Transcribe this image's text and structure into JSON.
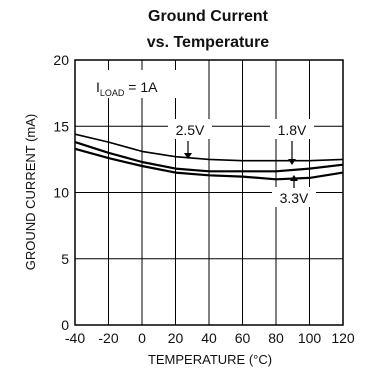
{
  "chart_data": {
    "type": "line",
    "title_line1": "Ground Current",
    "title_line2": "vs. Temperature",
    "xlabel": "TEMPERATURE (°C)",
    "ylabel": "GROUND CURRENT (mA)",
    "xlim": [
      -40,
      120
    ],
    "ylim": [
      0,
      20
    ],
    "x_ticks": [
      -40,
      -20,
      0,
      20,
      40,
      60,
      80,
      100,
      120
    ],
    "x_tick_labels": [
      "-40",
      "-20",
      "0",
      "20",
      "40",
      "60",
      "80",
      "100",
      "120"
    ],
    "y_ticks": [
      0,
      5,
      10,
      15,
      20
    ],
    "y_tick_labels": [
      "0",
      "5",
      "10",
      "15",
      "20"
    ],
    "grid": true,
    "annotation_load": {
      "main": "I",
      "sub": "LOAD",
      "rest": " = 1A"
    },
    "series": [
      {
        "name": "2.5V",
        "x": [
          -40,
          -20,
          0,
          20,
          40,
          60,
          80,
          100,
          120
        ],
        "y": [
          14.4,
          13.8,
          13.1,
          12.7,
          12.5,
          12.4,
          12.4,
          12.4,
          12.5
        ]
      },
      {
        "name": "1.8V",
        "x": [
          -40,
          -20,
          0,
          20,
          40,
          60,
          80,
          100,
          120
        ],
        "y": [
          13.8,
          13.0,
          12.3,
          11.8,
          11.6,
          11.6,
          11.6,
          11.8,
          12.1
        ]
      },
      {
        "name": "3.3V",
        "x": [
          -40,
          -20,
          0,
          20,
          40,
          60,
          80,
          100,
          120
        ],
        "y": [
          13.3,
          12.6,
          12.0,
          11.5,
          11.3,
          11.2,
          11.0,
          11.1,
          11.5
        ]
      }
    ]
  }
}
